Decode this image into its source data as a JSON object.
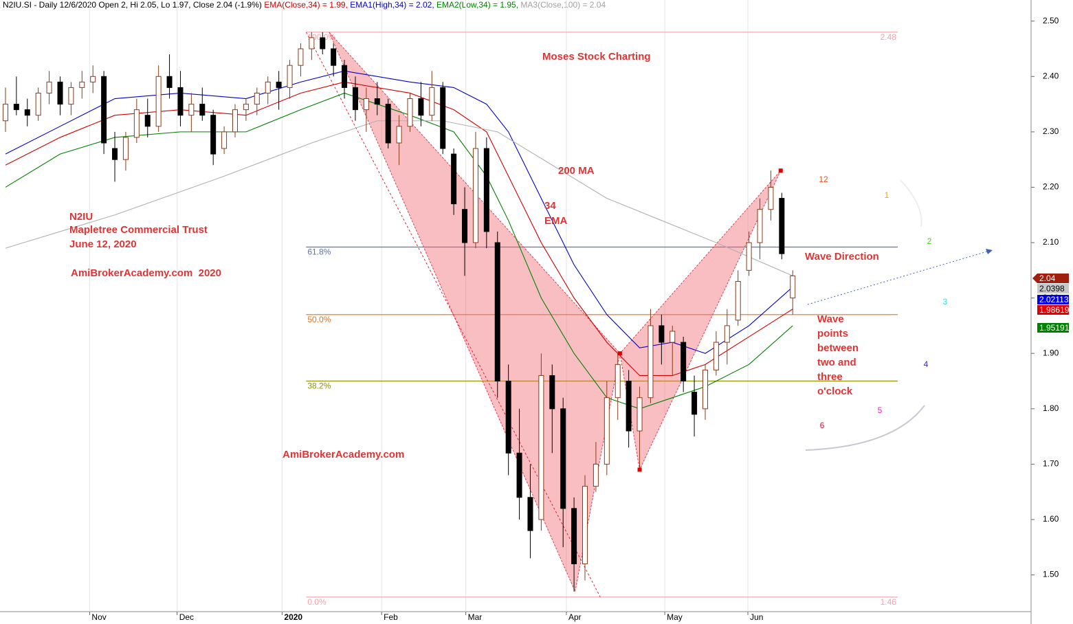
{
  "chart_data": {
    "type": "candlestick",
    "header": [
      {
        "text": "N2IU.SI - Daily 12/6/2020 Open 2, Hi 2.05, Lo 1.97, Close 2.04 (-1.9%) ",
        "color": "#000000"
      },
      {
        "text": "EMA(Close,34) = 1.99, ",
        "color": "#d00000"
      },
      {
        "text": "EMA1(High,34) = 2.02, ",
        "color": "#0000d0"
      },
      {
        "text": "EMA2(Low,34) = 1.95, ",
        "color": "#008000"
      },
      {
        "text": "MA3(Close,100) = 2.04",
        "color": "#a0a0a0"
      }
    ],
    "ylim": [
      1.4337,
      2.5381
    ],
    "yticks": [
      {
        "value": 1.5,
        "label": "1.50"
      },
      {
        "value": 1.6,
        "label": "1.60"
      },
      {
        "value": 1.7,
        "label": "1.70"
      },
      {
        "value": 1.8,
        "label": "1.80"
      },
      {
        "value": 1.9,
        "label": "1.90"
      },
      {
        "value": 2.0,
        "label": "2.00"
      },
      {
        "value": 2.1,
        "label": "2.10"
      },
      {
        "value": 2.2,
        "label": "2.20"
      },
      {
        "value": 2.3,
        "label": "2.30"
      },
      {
        "value": 2.4,
        "label": "2.40"
      },
      {
        "value": 2.5,
        "label": "2.50"
      }
    ],
    "xlim": [
      -0.5,
      93.8
    ],
    "xticks": [
      {
        "value": 7.7,
        "label": "Nov"
      },
      {
        "value": 15.7,
        "label": "Dec"
      },
      {
        "value": 25.3,
        "label": "2020"
      },
      {
        "value": 34.4,
        "label": "Feb"
      },
      {
        "value": 42.1,
        "label": "Mar"
      },
      {
        "value": 51.3,
        "label": "Apr"
      },
      {
        "value": 60.3,
        "label": "May"
      },
      {
        "value": 67.9,
        "label": "Jun"
      }
    ],
    "up_color": "#8b3a1a",
    "down_color": "#000000",
    "candles": [
      [
        2.32,
        2.38,
        2.3,
        2.35
      ],
      [
        2.35,
        2.4,
        2.33,
        2.34
      ],
      [
        2.34,
        2.36,
        2.31,
        2.33
      ],
      [
        2.33,
        2.38,
        2.32,
        2.37
      ],
      [
        2.37,
        2.41,
        2.35,
        2.39
      ],
      [
        2.39,
        2.4,
        2.33,
        2.35
      ],
      [
        2.35,
        2.39,
        2.33,
        2.38
      ],
      [
        2.38,
        2.41,
        2.36,
        2.39
      ],
      [
        2.39,
        2.42,
        2.37,
        2.4
      ],
      [
        2.4,
        2.41,
        2.26,
        2.28
      ],
      [
        2.27,
        2.3,
        2.21,
        2.25
      ],
      [
        2.25,
        2.3,
        2.23,
        2.29
      ],
      [
        2.29,
        2.36,
        2.28,
        2.34
      ],
      [
        2.33,
        2.36,
        2.29,
        2.31
      ],
      [
        2.31,
        2.42,
        2.3,
        2.4
      ],
      [
        2.4,
        2.44,
        2.36,
        2.38
      ],
      [
        2.38,
        2.41,
        2.31,
        2.33
      ],
      [
        2.33,
        2.37,
        2.3,
        2.35
      ],
      [
        2.35,
        2.38,
        2.32,
        2.33
      ],
      [
        2.33,
        2.34,
        2.24,
        2.26
      ],
      [
        2.27,
        2.31,
        2.26,
        2.3
      ],
      [
        2.3,
        2.35,
        2.29,
        2.34
      ],
      [
        2.34,
        2.36,
        2.32,
        2.35
      ],
      [
        2.35,
        2.38,
        2.33,
        2.37
      ],
      [
        2.37,
        2.4,
        2.35,
        2.39
      ],
      [
        2.39,
        2.41,
        2.34,
        2.38
      ],
      [
        2.38,
        2.43,
        2.36,
        2.42
      ],
      [
        2.42,
        2.46,
        2.4,
        2.45
      ],
      [
        2.45,
        2.48,
        2.43,
        2.47
      ],
      [
        2.47,
        2.48,
        2.44,
        2.45
      ],
      [
        2.45,
        2.46,
        2.4,
        2.42
      ],
      [
        2.42,
        2.43,
        2.36,
        2.38
      ],
      [
        2.38,
        2.4,
        2.32,
        2.34
      ],
      [
        2.34,
        2.38,
        2.3,
        2.36
      ],
      [
        2.36,
        2.39,
        2.33,
        2.35
      ],
      [
        2.35,
        2.36,
        2.27,
        2.28
      ],
      [
        2.28,
        2.33,
        2.24,
        2.31
      ],
      [
        2.31,
        2.37,
        2.3,
        2.36
      ],
      [
        2.36,
        2.39,
        2.31,
        2.33
      ],
      [
        2.33,
        2.41,
        2.32,
        2.38
      ],
      [
        2.38,
        2.39,
        2.26,
        2.27
      ],
      [
        2.26,
        2.27,
        2.15,
        2.17
      ],
      [
        2.16,
        2.2,
        2.04,
        2.1
      ],
      [
        2.1,
        2.3,
        2.09,
        2.27
      ],
      [
        2.27,
        2.29,
        2.09,
        2.12
      ],
      [
        2.1,
        2.12,
        1.82,
        1.85
      ],
      [
        1.85,
        1.88,
        1.68,
        1.72
      ],
      [
        1.72,
        1.8,
        1.6,
        1.64
      ],
      [
        1.64,
        1.7,
        1.53,
        1.58
      ],
      [
        1.6,
        1.9,
        1.58,
        1.86
      ],
      [
        1.86,
        1.88,
        1.72,
        1.8
      ],
      [
        1.8,
        1.82,
        1.55,
        1.62
      ],
      [
        1.62,
        1.64,
        1.47,
        1.52
      ],
      [
        1.52,
        1.68,
        1.49,
        1.66
      ],
      [
        1.66,
        1.74,
        1.65,
        1.7
      ],
      [
        1.7,
        1.85,
        1.68,
        1.82
      ],
      [
        1.82,
        1.9,
        1.78,
        1.88
      ],
      [
        1.85,
        1.87,
        1.73,
        1.76
      ],
      [
        1.76,
        1.84,
        1.69,
        1.82
      ],
      [
        1.82,
        1.98,
        1.81,
        1.95
      ],
      [
        1.95,
        1.97,
        1.88,
        1.92
      ],
      [
        1.92,
        1.95,
        1.86,
        1.94
      ],
      [
        1.92,
        1.93,
        1.83,
        1.85
      ],
      [
        1.83,
        1.86,
        1.75,
        1.79
      ],
      [
        1.8,
        1.88,
        1.78,
        1.87
      ],
      [
        1.87,
        1.94,
        1.86,
        1.92
      ],
      [
        1.92,
        1.98,
        1.88,
        1.95
      ],
      [
        1.96,
        2.05,
        1.95,
        2.03
      ],
      [
        2.05,
        2.12,
        2.04,
        2.1
      ],
      [
        2.1,
        2.18,
        2.07,
        2.16
      ],
      [
        2.16,
        2.23,
        2.14,
        2.2
      ],
      [
        2.18,
        2.19,
        2.07,
        2.08
      ],
      [
        2.0,
        2.05,
        1.97,
        2.04
      ]
    ],
    "series": [
      {
        "name": "EMA(Close,34)",
        "color": "#d00000",
        "x": [
          0,
          5,
          10,
          16,
          22,
          27,
          31,
          37,
          41,
          44,
          46,
          49,
          52,
          55,
          58,
          61,
          64,
          68,
          72
        ],
        "values": [
          2.24,
          2.29,
          2.33,
          2.34,
          2.33,
          2.37,
          2.39,
          2.37,
          2.34,
          2.3,
          2.22,
          2.1,
          2.0,
          1.92,
          1.86,
          1.86,
          1.88,
          1.93,
          1.98
        ]
      },
      {
        "name": "EMA1(High,34)",
        "color": "#0000d0",
        "x": [
          0,
          5,
          10,
          16,
          22,
          27,
          31,
          37,
          41,
          44,
          46,
          49,
          52,
          55,
          58,
          61,
          64,
          68,
          72
        ],
        "values": [
          2.26,
          2.31,
          2.36,
          2.37,
          2.36,
          2.39,
          2.41,
          2.39,
          2.38,
          2.35,
          2.3,
          2.18,
          2.06,
          1.97,
          1.91,
          1.92,
          1.9,
          1.95,
          2.02
        ]
      },
      {
        "name": "EMA2(Low,34)",
        "color": "#008000",
        "x": [
          0,
          5,
          10,
          16,
          22,
          27,
          31,
          37,
          41,
          44,
          46,
          49,
          52,
          55,
          58,
          61,
          64,
          68,
          72
        ],
        "values": [
          2.2,
          2.26,
          2.29,
          2.3,
          2.3,
          2.34,
          2.37,
          2.33,
          2.3,
          2.22,
          2.14,
          2.0,
          1.9,
          1.82,
          1.8,
          1.82,
          1.84,
          1.88,
          1.95
        ]
      },
      {
        "name": "MA3(Close,100)",
        "color": "#b0b0b0",
        "x": [
          0,
          10,
          20,
          28,
          34,
          40,
          45,
          50,
          55,
          60,
          65,
          72
        ],
        "values": [
          2.09,
          2.15,
          2.22,
          2.28,
          2.32,
          2.32,
          2.3,
          2.24,
          2.18,
          2.14,
          2.1,
          2.04
        ]
      }
    ],
    "fib_range": [
      27.5,
      81.6
    ],
    "fib": [
      {
        "value": 2.48,
        "label": "100.0%",
        "right_label": "2.48",
        "color": "#f4a0a8"
      },
      {
        "value": 2.092,
        "label": "61.8%",
        "color": "#6070b0"
      },
      {
        "value": 1.97,
        "label": "50.0%",
        "color": "#e07020"
      },
      {
        "value": 1.85,
        "label": "38.2%",
        "color": "#909000"
      },
      {
        "value": 1.46,
        "label": "0.0%",
        "right_label": "1.46",
        "color": "#f4a0a8"
      }
    ],
    "pattern": {
      "x": [
        29.6,
        56.2,
        52.1,
        56.2,
        58.0,
        70.9
      ],
      "values": [
        2.48,
        1.9,
        1.47,
        1.9,
        1.69,
        2.23
      ]
    },
    "dashed_line": {
      "x": [
        27.5,
        54.4
      ],
      "values": [
        2.48,
        1.46
      ]
    },
    "price_tags": [
      {
        "value": 2.04,
        "label": "2.04",
        "color": "#a02010"
      },
      {
        "value": 2.0398,
        "label": "2.0398",
        "color": "#c8c8c8"
      },
      {
        "value": 2.02113,
        "label": "2.02113",
        "color": "#0000e0"
      },
      {
        "value": 1.98619,
        "label": "1.98619",
        "color": "#e00000"
      },
      {
        "value": 1.95191,
        "label": "1.95191",
        "color": "#008000"
      }
    ],
    "annotations": [
      "Moses Stock Charting",
      "200 MA",
      "34",
      "EMA",
      "N2IU",
      "Mapletree Commercial Trust",
      "June 12, 2020",
      "AmiBrokerAcademy.com  2020",
      "AmiBrokerAcademy.com",
      "Wave Direction",
      "Wave",
      "points",
      "between",
      "two and",
      "three",
      "o'clock"
    ],
    "clock": [
      {
        "label": "12",
        "color": "#e8501a"
      },
      {
        "label": "1",
        "color": "#f0a020"
      },
      {
        "label": "2",
        "color": "#40d020"
      },
      {
        "label": "3",
        "color": "#30e0e0"
      },
      {
        "label": "4",
        "color": "#4020d0"
      },
      {
        "label": "5",
        "color": "#f020c0"
      },
      {
        "label": "6",
        "color": "#e01030"
      }
    ]
  }
}
